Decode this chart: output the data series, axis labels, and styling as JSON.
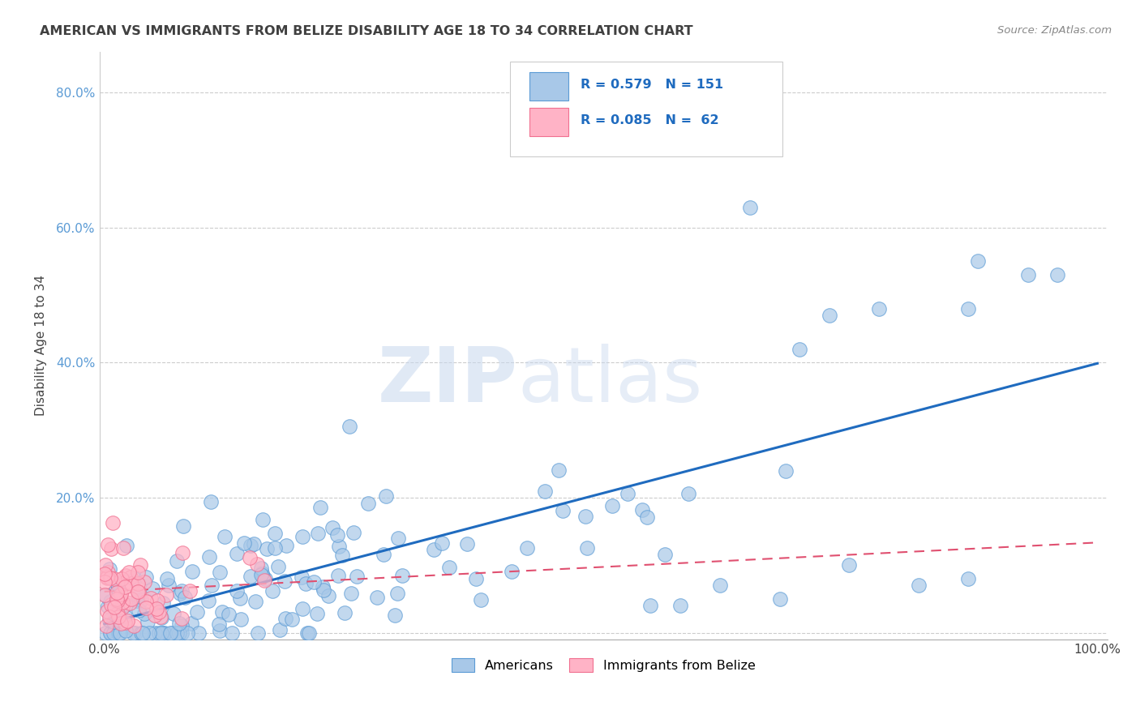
{
  "title": "AMERICAN VS IMMIGRANTS FROM BELIZE DISABILITY AGE 18 TO 34 CORRELATION CHART",
  "source": "Source: ZipAtlas.com",
  "ylabel": "Disability Age 18 to 34",
  "grid_color": "#cccccc",
  "background_color": "#ffffff",
  "watermark_zip": "ZIP",
  "watermark_atlas": "atlas",
  "blue_color": "#a8c8e8",
  "blue_edge_color": "#5b9bd5",
  "blue_line_color": "#1f6bbf",
  "pink_color": "#ffb3c6",
  "pink_edge_color": "#f07090",
  "pink_line_color": "#e05070",
  "tick_color": "#5b9bd5",
  "title_color": "#404040",
  "source_color": "#888888"
}
